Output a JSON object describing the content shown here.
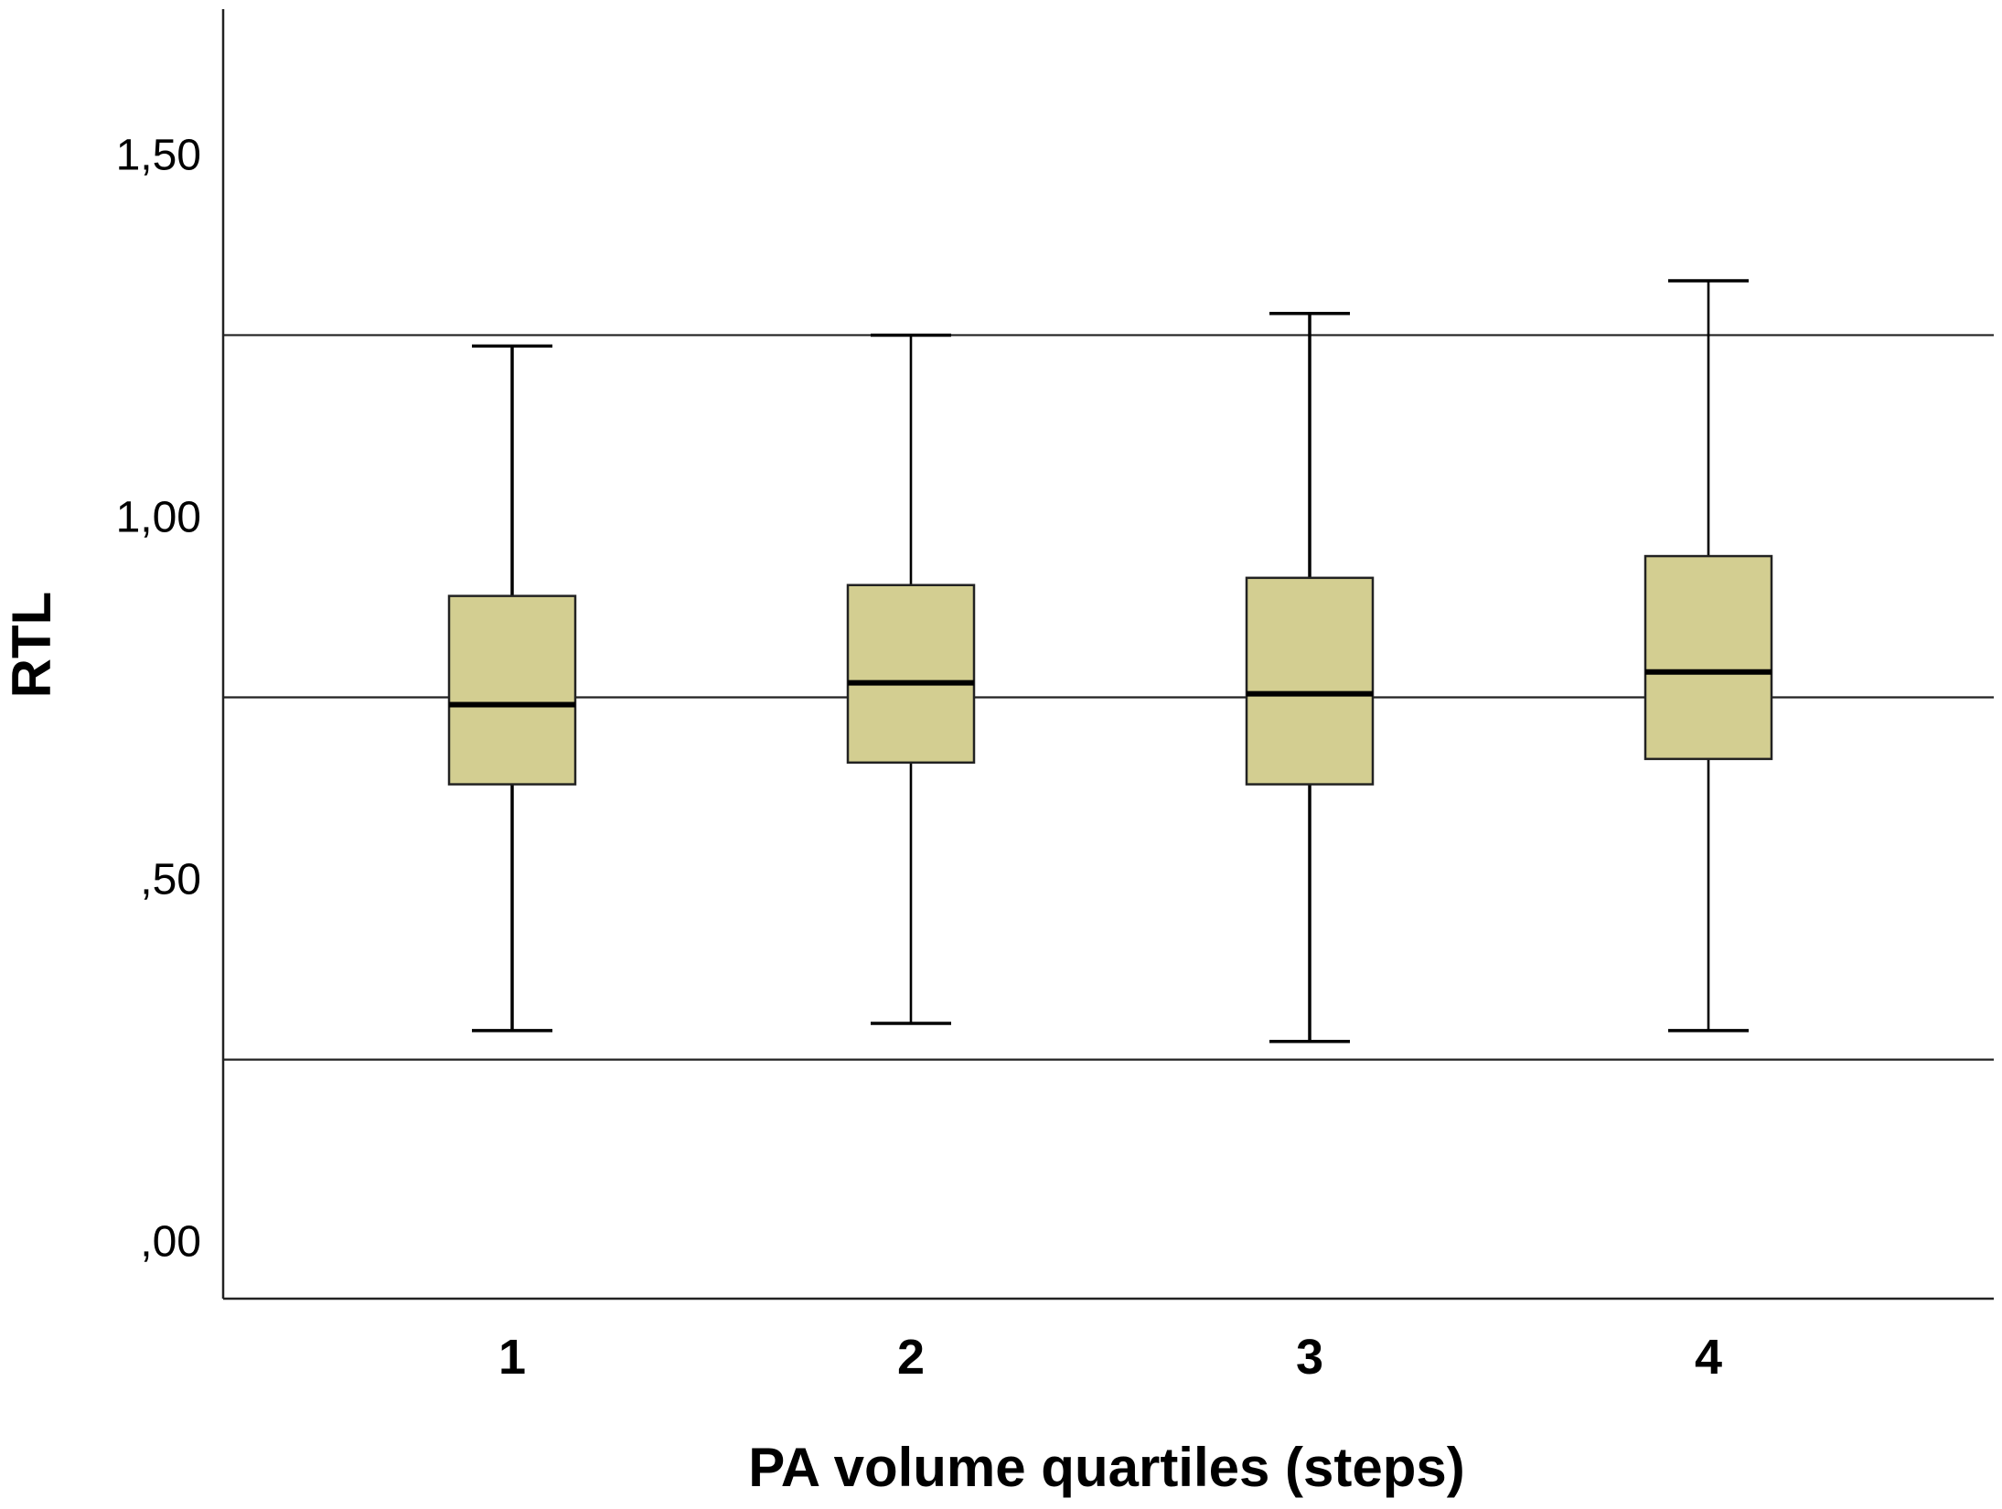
{
  "chart_data": {
    "type": "boxplot",
    "xlabel": "PA volume quartiles (steps)",
    "ylabel": "RTL",
    "categories": [
      "1",
      "2",
      "3",
      "4"
    ],
    "ylim": [
      -0.08,
      1.7
    ],
    "yticks": [
      {
        "value": 0.0,
        "label": ",00"
      },
      {
        "value": 0.5,
        "label": ",50"
      },
      {
        "value": 1.0,
        "label": "1,00"
      },
      {
        "value": 1.5,
        "label": "1,50"
      }
    ],
    "reference_lines": [
      1.25,
      0.75,
      0.25
    ],
    "grid": false,
    "box_color": "#d3ce91",
    "boxes": [
      {
        "category": "1",
        "whisker_low": 0.29,
        "q1": 0.63,
        "median": 0.74,
        "q3": 0.89,
        "whisker_high": 1.235
      },
      {
        "category": "2",
        "whisker_low": 0.3,
        "q1": 0.66,
        "median": 0.77,
        "q3": 0.905,
        "whisker_high": 1.25
      },
      {
        "category": "3",
        "whisker_low": 0.275,
        "q1": 0.63,
        "median": 0.755,
        "q3": 0.915,
        "whisker_high": 1.28
      },
      {
        "category": "4",
        "whisker_low": 0.29,
        "q1": 0.665,
        "median": 0.785,
        "q3": 0.945,
        "whisker_high": 1.325
      }
    ]
  }
}
